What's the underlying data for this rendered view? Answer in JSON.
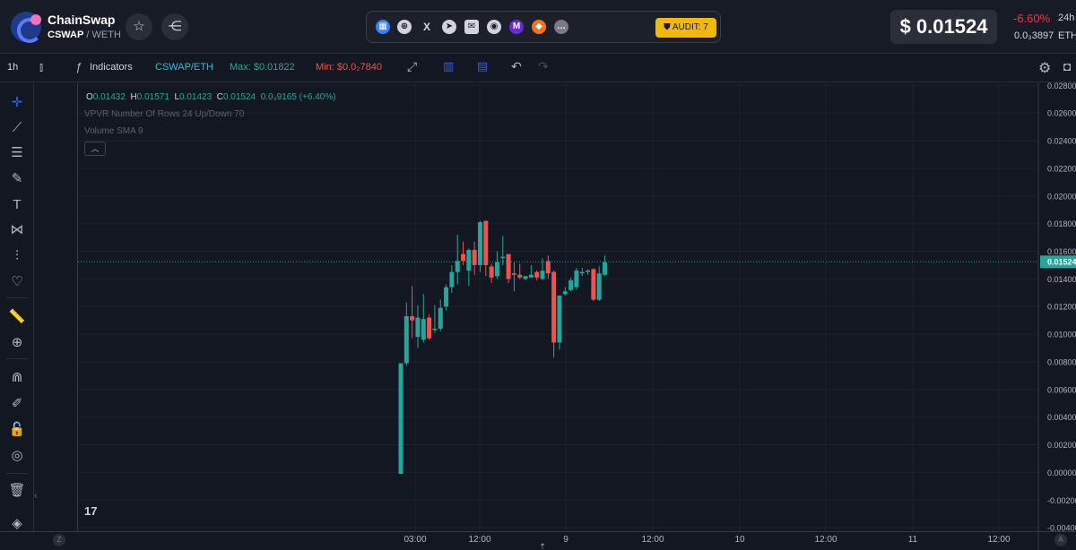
{
  "header": {
    "brand": "ChainSwap",
    "pair_base": "CSWAP",
    "pair_sep": "/",
    "pair_quote": "WETH",
    "star_icon": "☆",
    "share_icon": "⋲",
    "social_icons": [
      {
        "name": "dextools-icon",
        "glyph": "▦"
      },
      {
        "name": "website-icon",
        "glyph": "⊕"
      },
      {
        "name": "x-icon",
        "glyph": "X"
      },
      {
        "name": "telegram-icon",
        "glyph": "➤"
      },
      {
        "name": "email-icon",
        "glyph": "✉"
      },
      {
        "name": "github-icon",
        "glyph": "◉"
      },
      {
        "name": "web3-icon",
        "glyph": "M"
      },
      {
        "name": "metamask-icon",
        "glyph": "◆"
      },
      {
        "name": "more-icon",
        "glyph": "…"
      }
    ],
    "audit_label": "AUDIT: 7",
    "price": "$ 0.01524",
    "change": "-6.60%",
    "change_period": "24h",
    "eth_price": "0.0₃3897",
    "eth_unit": "ETH"
  },
  "toolbar": {
    "interval": "1h",
    "indicators": "Indicators",
    "symbol": "CSWAP/ETH",
    "max": "Max: $0.01822",
    "min": "Min: $0.0₂7840"
  },
  "legend": {
    "open_label": "O",
    "open": "0.01432",
    "high_label": "H",
    "high": "0.01571",
    "low_label": "L",
    "low": "0.01423",
    "close_label": "C",
    "close": "0.01524",
    "change": "0.0₃9165 (+6.40%)",
    "vpvr": "VPVR Number Of Rows 24 Up/Down 70",
    "volume": "Volume SMA 9",
    "tv_logo": "17"
  },
  "xaxis": {
    "z_label": "Z",
    "a_label": "A"
  },
  "colors": {
    "up": "#26a69a",
    "down": "#ef5350",
    "bg": "#131722",
    "grid": "#1e222d"
  },
  "chart_data": {
    "type": "candlestick",
    "y_ticks": [
      "0.02800",
      "0.02600",
      "0.02400",
      "0.02200",
      "0.02000",
      "0.01800",
      "0.01600",
      "0.01400",
      "0.01200",
      "0.01000",
      "0.00800",
      "0.00600",
      "0.00400",
      "0.00200",
      "0.00000",
      "-0.00200",
      "-0.00400"
    ],
    "y_range": [
      -0.00425,
      0.02815
    ],
    "x_ticks": [
      "03:00",
      "12:00",
      "9",
      "12:00",
      "10",
      "12:00",
      "11",
      "12:00"
    ],
    "last_price_label": "0.01524",
    "last_price": 0.01524,
    "candles": [
      {
        "o": -0.0001,
        "h": 0.0079,
        "l": -0.0001,
        "c": 0.0079
      },
      {
        "o": 0.0079,
        "h": 0.0123,
        "l": 0.0077,
        "c": 0.0113
      },
      {
        "o": 0.0113,
        "h": 0.0135,
        "l": 0.0097,
        "c": 0.011
      },
      {
        "o": 0.0098,
        "h": 0.0121,
        "l": 0.009,
        "c": 0.0112
      },
      {
        "o": 0.0096,
        "h": 0.0129,
        "l": 0.0094,
        "c": 0.0111
      },
      {
        "o": 0.0112,
        "h": 0.0114,
        "l": 0.0096,
        "c": 0.0097
      },
      {
        "o": 0.0103,
        "h": 0.0121,
        "l": 0.0101,
        "c": 0.0104
      },
      {
        "o": 0.0104,
        "h": 0.0125,
        "l": 0.0102,
        "c": 0.0119
      },
      {
        "o": 0.012,
        "h": 0.0136,
        "l": 0.0117,
        "c": 0.0134
      },
      {
        "o": 0.0134,
        "h": 0.015,
        "l": 0.013,
        "c": 0.0145
      },
      {
        "o": 0.0145,
        "h": 0.0172,
        "l": 0.0136,
        "c": 0.0153
      },
      {
        "o": 0.0158,
        "h": 0.0167,
        "l": 0.015,
        "c": 0.0153
      },
      {
        "o": 0.0146,
        "h": 0.0162,
        "l": 0.0135,
        "c": 0.0161
      },
      {
        "o": 0.0161,
        "h": 0.0167,
        "l": 0.0143,
        "c": 0.015
      },
      {
        "o": 0.015,
        "h": 0.0182,
        "l": 0.0145,
        "c": 0.0181
      },
      {
        "o": 0.0182,
        "h": 0.0182,
        "l": 0.0142,
        "c": 0.015
      },
      {
        "o": 0.0149,
        "h": 0.0151,
        "l": 0.0137,
        "c": 0.0141
      },
      {
        "o": 0.0142,
        "h": 0.016,
        "l": 0.014,
        "c": 0.0152
      },
      {
        "o": 0.0155,
        "h": 0.0171,
        "l": 0.015,
        "c": 0.0156
      },
      {
        "o": 0.0158,
        "h": 0.0157,
        "l": 0.0137,
        "c": 0.014
      },
      {
        "o": 0.0144,
        "h": 0.0152,
        "l": 0.0131,
        "c": 0.0143
      },
      {
        "o": 0.0143,
        "h": 0.0151,
        "l": 0.014,
        "c": 0.0141
      },
      {
        "o": 0.014,
        "h": 0.0142,
        "l": 0.0139,
        "c": 0.0142
      },
      {
        "o": 0.0141,
        "h": 0.015,
        "l": 0.0141,
        "c": 0.0143
      },
      {
        "o": 0.0145,
        "h": 0.0146,
        "l": 0.0139,
        "c": 0.0141
      },
      {
        "o": 0.014,
        "h": 0.0155,
        "l": 0.0139,
        "c": 0.0146
      },
      {
        "o": 0.0153,
        "h": 0.0157,
        "l": 0.014,
        "c": 0.0144
      },
      {
        "o": 0.0145,
        "h": 0.0146,
        "l": 0.0083,
        "c": 0.0094
      },
      {
        "o": 0.0094,
        "h": 0.0128,
        "l": 0.0089,
        "c": 0.0128
      },
      {
        "o": 0.0129,
        "h": 0.0134,
        "l": 0.0128,
        "c": 0.0131
      },
      {
        "o": 0.0132,
        "h": 0.0141,
        "l": 0.0131,
        "c": 0.0139
      },
      {
        "o": 0.0134,
        "h": 0.0148,
        "l": 0.0132,
        "c": 0.0146
      },
      {
        "o": 0.0144,
        "h": 0.0148,
        "l": 0.0142,
        "c": 0.0145
      },
      {
        "o": 0.0145,
        "h": 0.0147,
        "l": 0.0143,
        "c": 0.0146
      },
      {
        "o": 0.0147,
        "h": 0.0148,
        "l": 0.0124,
        "c": 0.0125
      },
      {
        "o": 0.0125,
        "h": 0.0149,
        "l": 0.0124,
        "c": 0.0144
      },
      {
        "o": 0.0143,
        "h": 0.0157,
        "l": 0.0142,
        "c": 0.0152
      }
    ]
  }
}
